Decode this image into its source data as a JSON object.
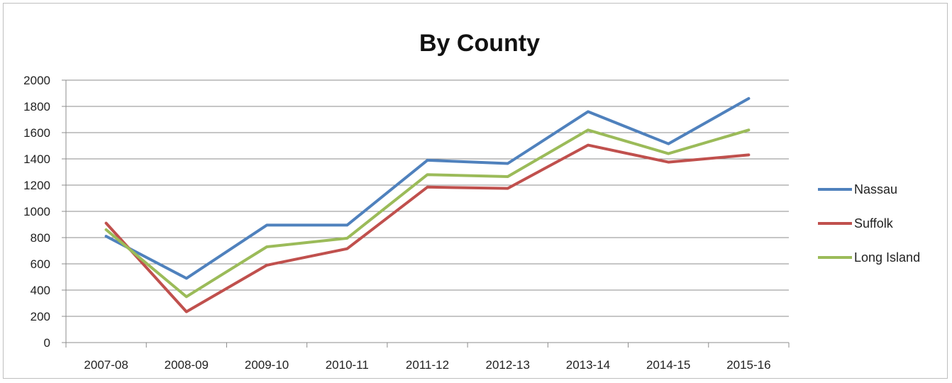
{
  "chart_data": {
    "type": "line",
    "title": "By County",
    "xlabel": "",
    "ylabel": "",
    "categories": [
      "2007-08",
      "2008-09",
      "2009-10",
      "2010-11",
      "2011-12",
      "2012-13",
      "2013-14",
      "2014-15",
      "2015-16"
    ],
    "ylim": [
      0,
      2000
    ],
    "yticks": [
      0,
      200,
      400,
      600,
      800,
      1000,
      1200,
      1400,
      1600,
      1800,
      2000
    ],
    "grid": true,
    "legend_position": "right",
    "series": [
      {
        "name": "Nassau",
        "color": "#4f81bd",
        "values": [
          810,
          490,
          895,
          895,
          1390,
          1365,
          1760,
          1515,
          1860
        ]
      },
      {
        "name": "Suffolk",
        "color": "#c0504d",
        "values": [
          910,
          235,
          590,
          715,
          1185,
          1175,
          1505,
          1375,
          1430
        ]
      },
      {
        "name": "Long Island",
        "color": "#9bbb59",
        "values": [
          860,
          350,
          730,
          795,
          1280,
          1265,
          1620,
          1440,
          1620
        ]
      }
    ]
  }
}
